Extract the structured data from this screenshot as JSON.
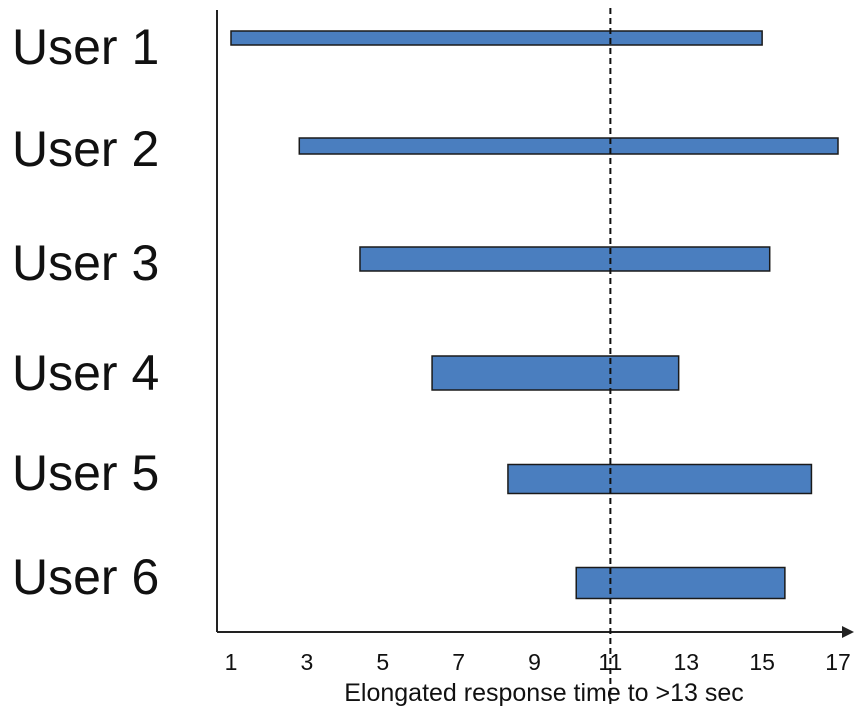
{
  "chart_data": {
    "type": "bar",
    "orientation": "horizontal",
    "categories": [
      "User 1",
      "User 2",
      "User 3",
      "User 4",
      "User 5",
      "User 6"
    ],
    "series": [
      {
        "ranges": [
          [
            1.0,
            15.0
          ],
          [
            2.8,
            17.0
          ],
          [
            4.4,
            15.2
          ],
          [
            6.3,
            12.8
          ],
          [
            8.3,
            16.3
          ],
          [
            10.1,
            15.6
          ]
        ]
      }
    ],
    "xlabel": "Elongated response time to >13 sec",
    "ylabel": "",
    "xticks": [
      1,
      3,
      5,
      7,
      9,
      11,
      13,
      15,
      17
    ],
    "xlim": [
      1,
      17.5
    ],
    "reference_line": {
      "x": 11,
      "style": "dashed"
    },
    "grid": false,
    "legend": "none",
    "colors": {
      "bar_fill": "#4a7ebf",
      "bar_stroke": "#1a1a1a",
      "axis": "#222222"
    }
  }
}
